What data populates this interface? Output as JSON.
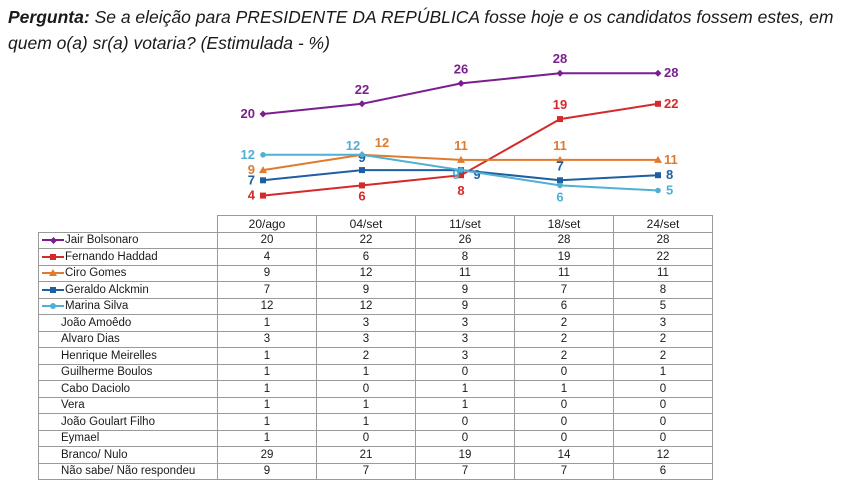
{
  "question": {
    "lead": "Pergunta:",
    "text": "Se a eleição para PRESIDENTE DA REPÚBLICA fosse hoje e os candidatos fossem estes, em quem o(a) sr(a) votaria? (Estimulada - %)"
  },
  "colors": {
    "bolsonaro": "#7b1f8f",
    "haddad": "#d42a2a",
    "ciro": "#e07a2c",
    "alckmin": "#1f5fa0",
    "marina": "#4fb0d4"
  },
  "chart_data": {
    "type": "line",
    "x": [
      "20/ago",
      "04/set",
      "11/set",
      "18/set",
      "24/set"
    ],
    "ylim": [
      0,
      30
    ],
    "series": [
      {
        "name": "Jair Bolsonaro",
        "key": "bolsonaro",
        "marker": "diamond",
        "values": [
          20,
          22,
          26,
          28,
          28
        ]
      },
      {
        "name": "Fernando Haddad",
        "key": "haddad",
        "marker": "square",
        "values": [
          4,
          6,
          8,
          19,
          22
        ]
      },
      {
        "name": "Ciro Gomes",
        "key": "ciro",
        "marker": "triangle",
        "values": [
          9,
          12,
          11,
          11,
          11
        ]
      },
      {
        "name": "Geraldo Alckmin",
        "key": "alckmin",
        "marker": "square",
        "values": [
          7,
          9,
          9,
          7,
          8
        ]
      },
      {
        "name": "Marina Silva",
        "key": "marina",
        "marker": "circle",
        "values": [
          12,
          12,
          9,
          6,
          5
        ]
      }
    ]
  },
  "table": {
    "headers": [
      "20/ago",
      "04/set",
      "11/set",
      "18/set",
      "24/set"
    ],
    "rows": [
      {
        "name": "Jair Bolsonaro",
        "values": [
          "20",
          "22",
          "26",
          "28",
          "28"
        ]
      },
      {
        "name": "Fernando Haddad",
        "values": [
          "4",
          "6",
          "8",
          "19",
          "22"
        ]
      },
      {
        "name": "Ciro Gomes",
        "values": [
          "9",
          "12",
          "11",
          "11",
          "11"
        ]
      },
      {
        "name": "Geraldo Alckmin",
        "values": [
          "7",
          "9",
          "9",
          "7",
          "8"
        ]
      },
      {
        "name": "Marina Silva",
        "values": [
          "12",
          "12",
          "9",
          "6",
          "5"
        ]
      },
      {
        "name": "João Amoêdo",
        "values": [
          "1",
          "3",
          "3",
          "2",
          "3"
        ]
      },
      {
        "name": "Alvaro Dias",
        "values": [
          "3",
          "3",
          "3",
          "2",
          "2"
        ]
      },
      {
        "name": "Henrique Meirelles",
        "values": [
          "1",
          "2",
          "3",
          "2",
          "2"
        ]
      },
      {
        "name": "Guilherme Boulos",
        "values": [
          "1",
          "1",
          "0",
          "0",
          "1"
        ]
      },
      {
        "name": "Cabo Daciolo",
        "values": [
          "1",
          "0",
          "1",
          "1",
          "0"
        ]
      },
      {
        "name": "Vera",
        "values": [
          "1",
          "1",
          "1",
          "0",
          "0"
        ]
      },
      {
        "name": "João Goulart Filho",
        "values": [
          "1",
          "1",
          "0",
          "0",
          "0"
        ]
      },
      {
        "name": "Eymael",
        "values": [
          "1",
          "0",
          "0",
          "0",
          "0"
        ]
      },
      {
        "name": "Branco/ Nulo",
        "values": [
          "29",
          "21",
          "19",
          "14",
          "12"
        ]
      },
      {
        "name": "Não sabe/ Não respondeu",
        "values": [
          "9",
          "7",
          "7",
          "7",
          "6"
        ]
      }
    ]
  }
}
